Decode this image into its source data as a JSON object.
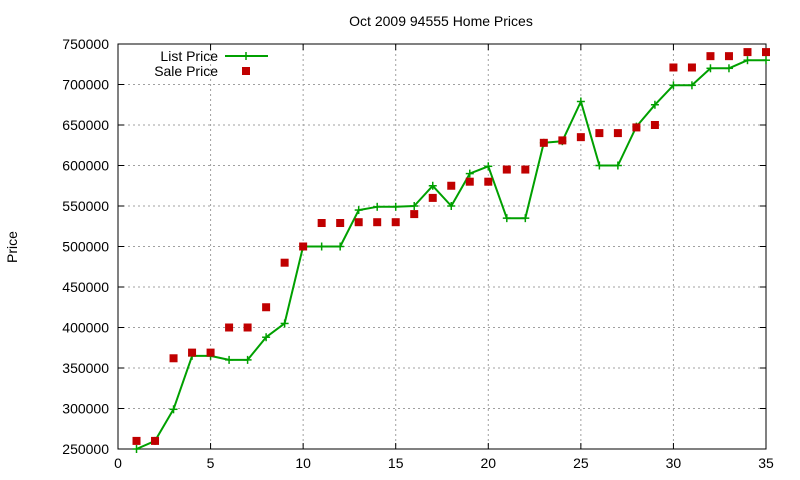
{
  "chart_data": {
    "type": "line",
    "title": "Oct 2009 94555 Home Prices",
    "xlabel": "",
    "ylabel": "Price",
    "xlim": [
      0,
      35
    ],
    "ylim": [
      250000,
      750000
    ],
    "xticks": [
      0,
      5,
      10,
      15,
      20,
      25,
      30,
      35
    ],
    "yticks": [
      250000,
      300000,
      350000,
      400000,
      450000,
      500000,
      550000,
      600000,
      650000,
      700000,
      750000
    ],
    "xtick_labels": [
      "0",
      "5",
      "10",
      "15",
      "20",
      "25",
      "30",
      "35"
    ],
    "ytick_labels": [
      "250000",
      "300000",
      "350000",
      "400000",
      "450000",
      "500000",
      "550000",
      "600000",
      "650000",
      "700000",
      "750000"
    ],
    "grid": true,
    "legend_position": "top-left",
    "series": [
      {
        "name": "List Price",
        "style": "line+cross",
        "color": "#00a000",
        "x": [
          1,
          2,
          3,
          4,
          5,
          6,
          7,
          8,
          9,
          10,
          11,
          12,
          13,
          14,
          15,
          16,
          17,
          18,
          19,
          20,
          21,
          22,
          23,
          24,
          25,
          26,
          27,
          28,
          29,
          30,
          31,
          32,
          33,
          34,
          35
        ],
        "y": [
          250000,
          260000,
          299000,
          365000,
          365000,
          360000,
          360000,
          388000,
          405000,
          500000,
          500000,
          500000,
          545000,
          549000,
          549000,
          550000,
          575000,
          550000,
          590000,
          599000,
          535000,
          535000,
          628000,
          630000,
          679000,
          600000,
          600000,
          648000,
          675000,
          699000,
          699000,
          720000,
          720000,
          730000,
          730000
        ]
      },
      {
        "name": "Sale Price",
        "style": "square",
        "color": "#c00000",
        "x": [
          1,
          2,
          3,
          4,
          5,
          6,
          7,
          8,
          9,
          10,
          11,
          12,
          13,
          14,
          15,
          16,
          17,
          18,
          19,
          20,
          21,
          22,
          23,
          24,
          25,
          26,
          27,
          28,
          29,
          30,
          31,
          32,
          33,
          34,
          35
        ],
        "y": [
          260000,
          260000,
          362000,
          369000,
          369000,
          400000,
          400000,
          425000,
          480000,
          500000,
          529000,
          529000,
          530000,
          530000,
          530000,
          540000,
          560000,
          575000,
          580000,
          580000,
          595000,
          595000,
          628000,
          631000,
          635000,
          640000,
          640000,
          647000,
          650000,
          721000,
          721000,
          735000,
          735000,
          740000,
          740000
        ]
      }
    ]
  }
}
